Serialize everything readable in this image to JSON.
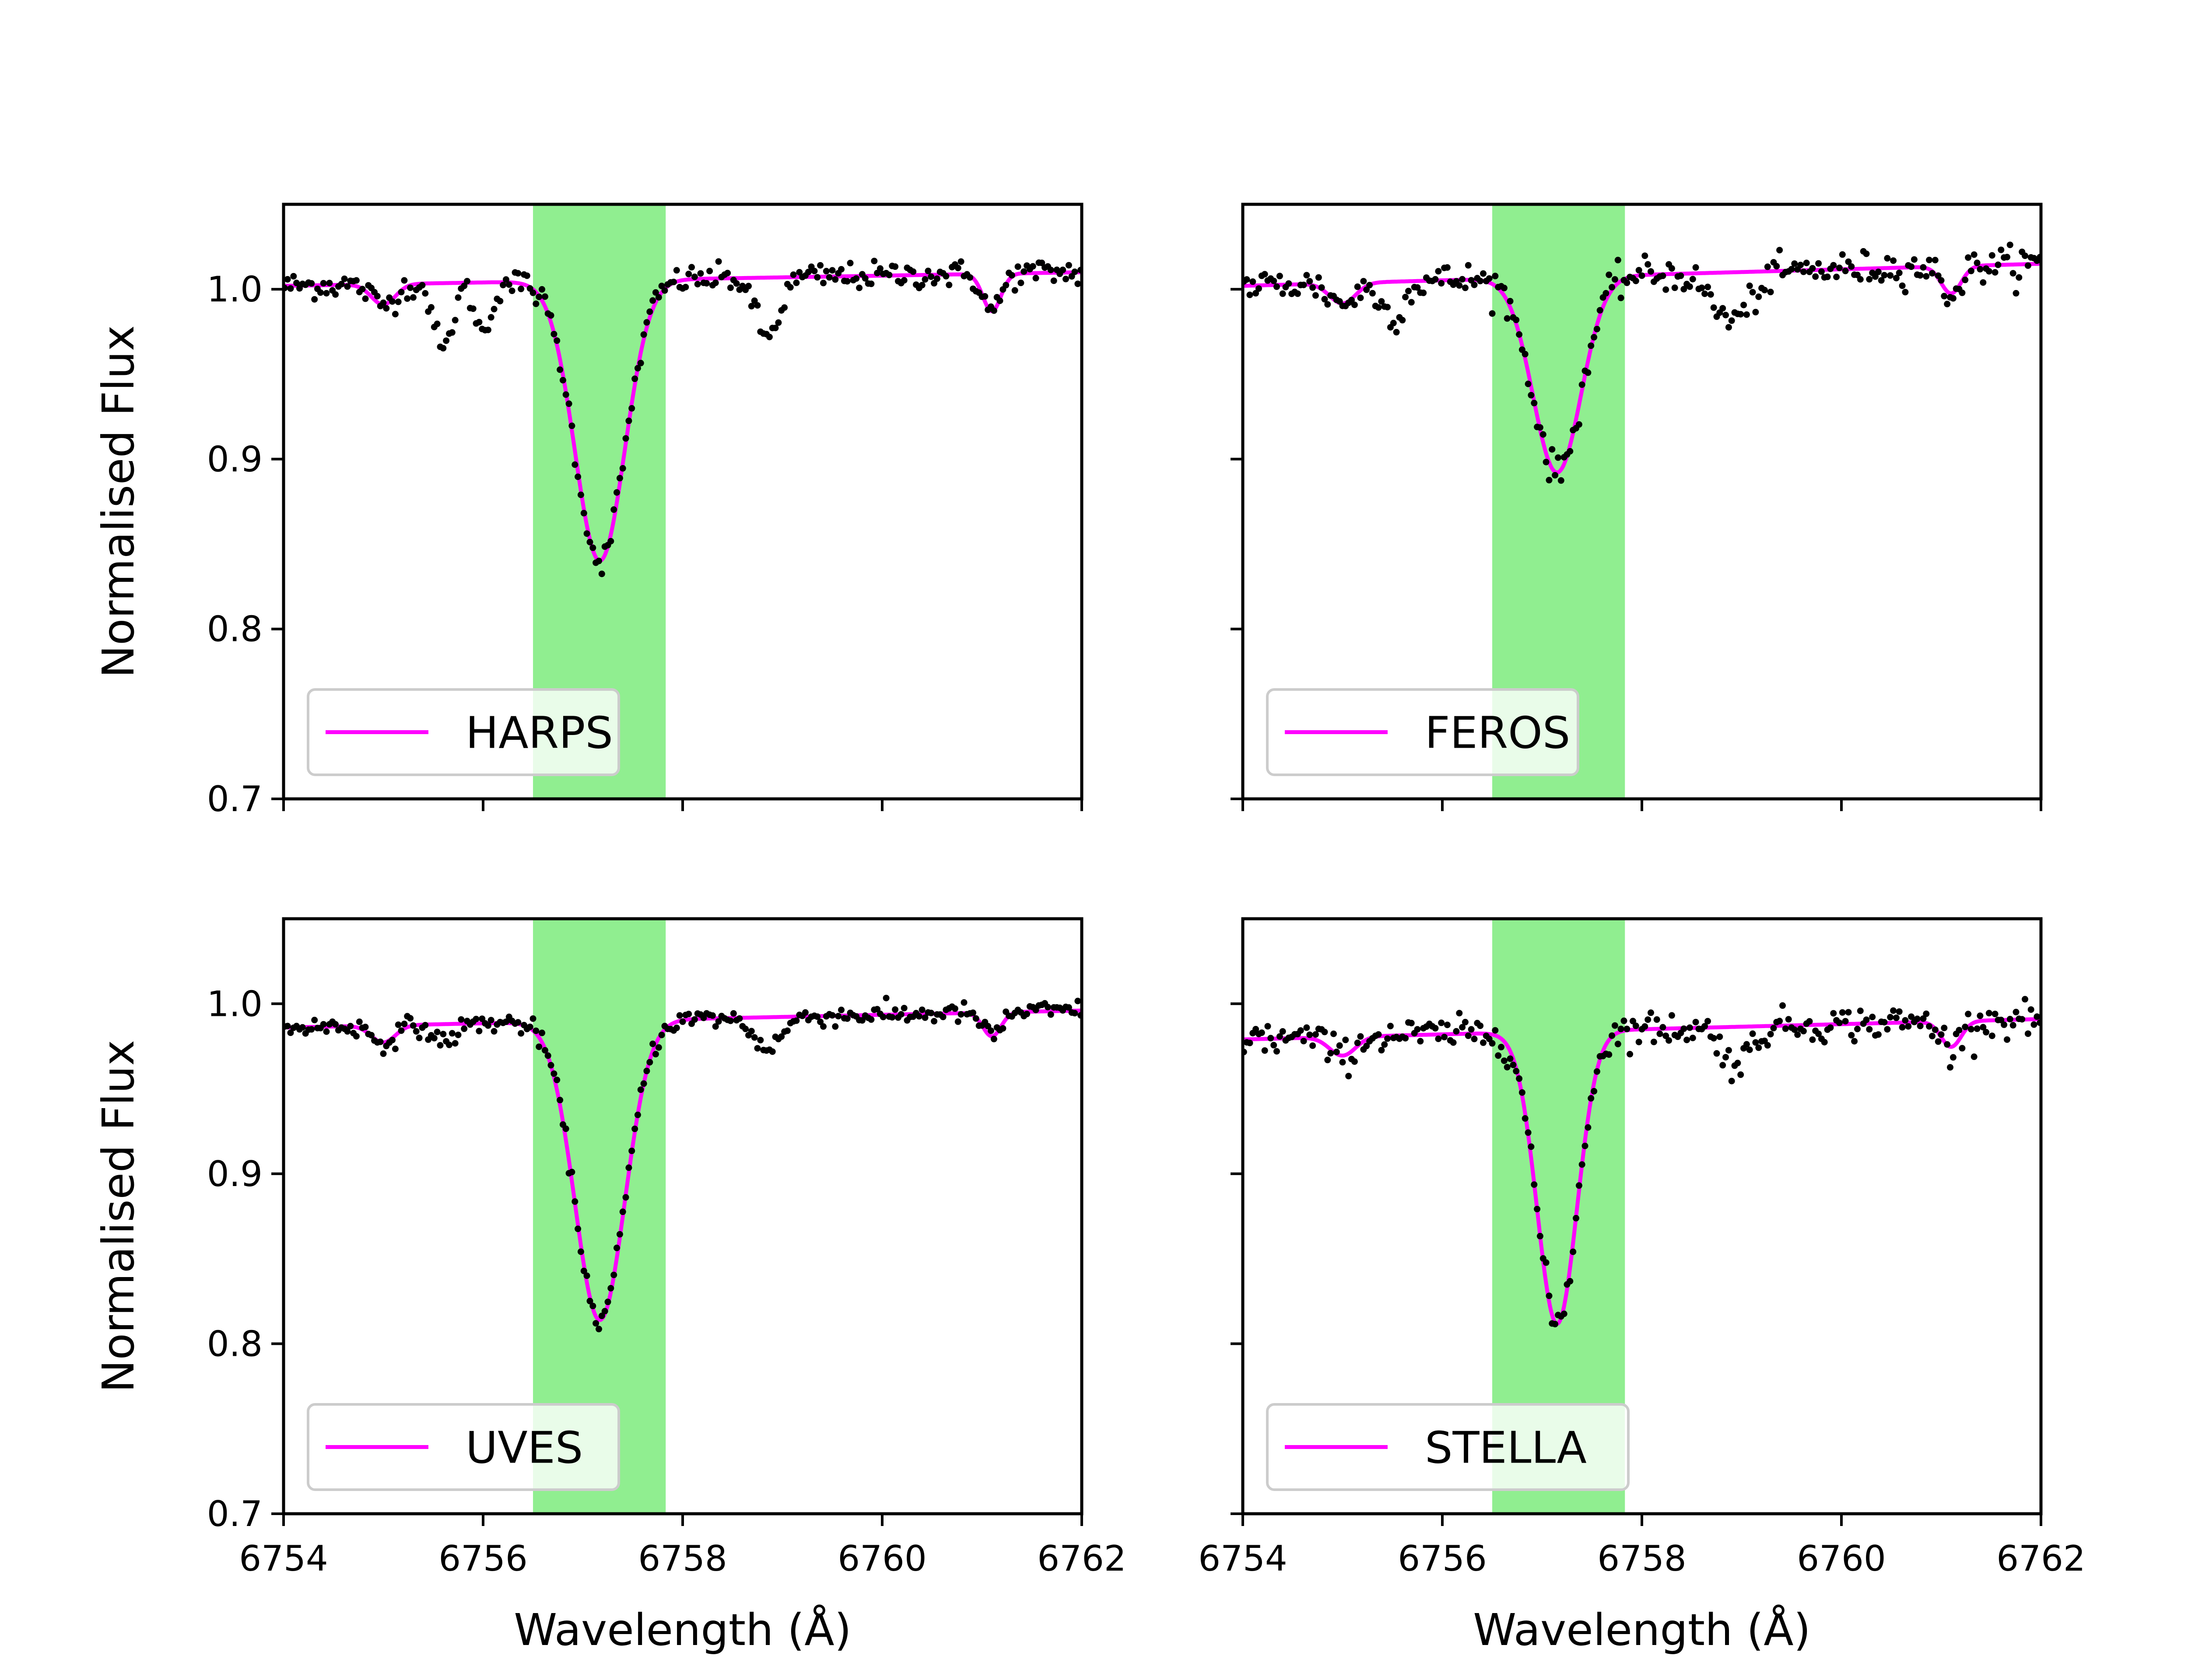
{
  "chart_data": {
    "type": "line",
    "layout": "2x2 grid, shared axes",
    "xlabel": "Wavelength (Å)",
    "ylabel": "Normalised Flux",
    "xlim": [
      6754,
      6762
    ],
    "ylim": [
      0.7,
      1.05
    ],
    "xticks": [
      6754,
      6756,
      6758,
      6760,
      6762
    ],
    "yticks": [
      "0.7",
      "0.8",
      "0.9",
      "1.0"
    ],
    "highlight_band": {
      "x0": 6756.5,
      "x1": 6757.83,
      "color": "#90ee90"
    },
    "colors": {
      "model": "#ff00ff",
      "observed": "#000000",
      "band": "#90ee90"
    },
    "legend_location": "lower-left",
    "panels": [
      {
        "id": "harps",
        "label": "HARPS",
        "show_xticklabels": false,
        "show_xlabel": false,
        "show_yticklabels": true,
        "show_ylabel": true,
        "continuum": [
          1.002,
          1.01
        ],
        "lines": [
          {
            "center": 6755.0,
            "depth": 0.012,
            "sigma": 0.12
          },
          {
            "center": 6757.17,
            "depth": 0.165,
            "sigma": 0.25
          },
          {
            "center": 6761.1,
            "depth": 0.022,
            "sigma": 0.09
          }
        ],
        "extra_dips": [
          {
            "center": 6755.6,
            "depth": 0.04,
            "sigma": 0.09
          },
          {
            "center": 6756.0,
            "depth": 0.03,
            "sigma": 0.08
          },
          {
            "center": 6758.85,
            "depth": 0.035,
            "sigma": 0.12
          }
        ],
        "noise": 0.004
      },
      {
        "id": "feros",
        "label": "FEROS",
        "show_xticklabels": false,
        "show_xlabel": false,
        "show_yticklabels": false,
        "show_ylabel": false,
        "continuum": [
          1.002,
          1.015
        ],
        "lines": [
          {
            "center": 6755.0,
            "depth": 0.012,
            "sigma": 0.13
          },
          {
            "center": 6757.15,
            "depth": 0.115,
            "sigma": 0.24
          },
          {
            "center": 6761.1,
            "depth": 0.016,
            "sigma": 0.1
          }
        ],
        "extra_dips": [
          {
            "center": 6755.5,
            "depth": 0.02,
            "sigma": 0.12
          },
          {
            "center": 6758.9,
            "depth": 0.028,
            "sigma": 0.2
          }
        ],
        "noise": 0.005
      },
      {
        "id": "uves",
        "label": "UVES",
        "show_xticklabels": true,
        "show_xlabel": true,
        "show_yticklabels": true,
        "show_ylabel": true,
        "continuum": [
          0.986,
          0.996
        ],
        "lines": [
          {
            "center": 6755.0,
            "depth": 0.01,
            "sigma": 0.12
          },
          {
            "center": 6757.17,
            "depth": 0.176,
            "sigma": 0.25
          },
          {
            "center": 6761.1,
            "depth": 0.014,
            "sigma": 0.09
          }
        ],
        "extra_dips": [
          {
            "center": 6755.6,
            "depth": 0.01,
            "sigma": 0.12
          },
          {
            "center": 6758.85,
            "depth": 0.018,
            "sigma": 0.14
          }
        ],
        "noise": 0.003
      },
      {
        "id": "stella",
        "label": "STELLA",
        "show_xticklabels": true,
        "show_xlabel": true,
        "show_yticklabels": false,
        "show_ylabel": false,
        "continuum": [
          0.979,
          0.991
        ],
        "lines": [
          {
            "center": 6755.0,
            "depth": 0.011,
            "sigma": 0.13
          },
          {
            "center": 6757.15,
            "depth": 0.172,
            "sigma": 0.2
          },
          {
            "center": 6761.1,
            "depth": 0.015,
            "sigma": 0.1
          }
        ],
        "extra_dips": [
          {
            "center": 6758.95,
            "depth": 0.022,
            "sigma": 0.14
          }
        ],
        "noise": 0.005
      }
    ]
  }
}
